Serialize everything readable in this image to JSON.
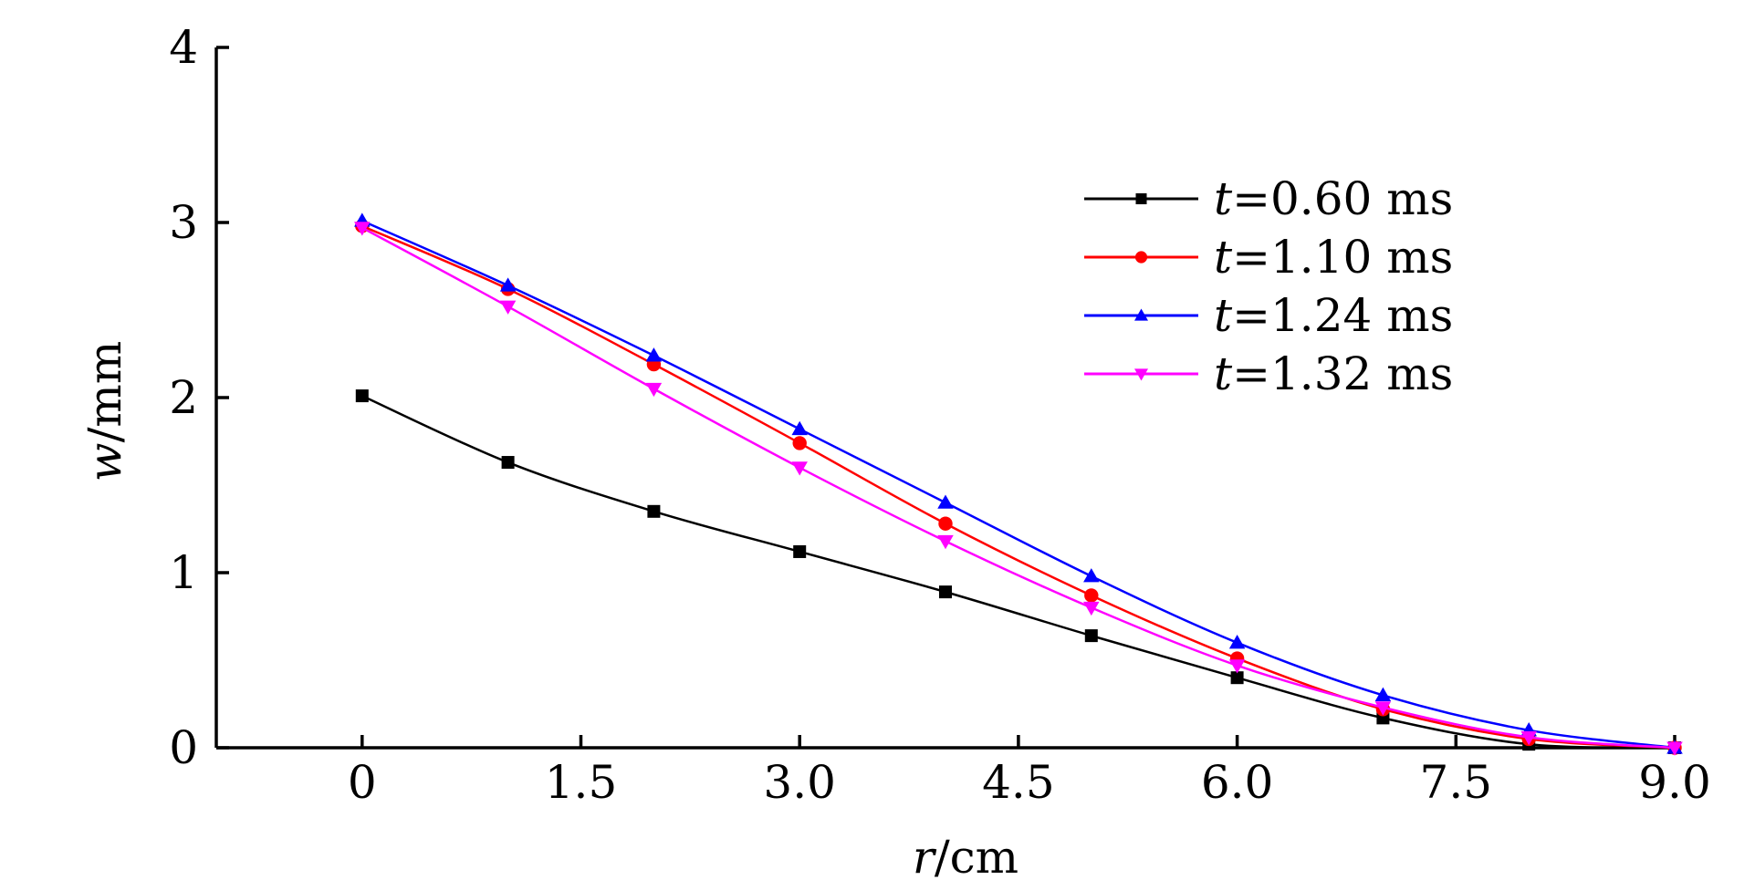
{
  "chart_data": {
    "type": "line",
    "title": "",
    "xlabel": {
      "symbol": "r",
      "unit": "/cm"
    },
    "ylabel": {
      "symbol": "w",
      "unit": "/mm"
    },
    "xlim": [
      -1.0,
      9.0
    ],
    "ylim": [
      0,
      4
    ],
    "x_ticks": [
      {
        "value": 0,
        "label": "0"
      },
      {
        "value": 1.5,
        "label": "1.5"
      },
      {
        "value": 3.0,
        "label": "3.0"
      },
      {
        "value": 4.5,
        "label": "4.5"
      },
      {
        "value": 6.0,
        "label": "6.0"
      },
      {
        "value": 7.5,
        "label": "7.5"
      },
      {
        "value": 9.0,
        "label": "9.0"
      }
    ],
    "y_ticks": [
      {
        "value": 0,
        "label": "0"
      },
      {
        "value": 1,
        "label": "1"
      },
      {
        "value": 2,
        "label": "2"
      },
      {
        "value": 3,
        "label": "3"
      },
      {
        "value": 4,
        "label": "4"
      }
    ],
    "grid": false,
    "legend_position": "top-right",
    "x": [
      0,
      1,
      2,
      3,
      4,
      5,
      6,
      7,
      8,
      9
    ],
    "series": [
      {
        "name_symbol": "t",
        "name_value": "=0.60 ms",
        "color": "#000000",
        "marker": "square",
        "values": [
          2.01,
          1.63,
          1.35,
          1.12,
          0.89,
          0.64,
          0.4,
          0.17,
          0.02,
          0.0
        ]
      },
      {
        "name_symbol": "t",
        "name_value": "=1.10 ms",
        "color": "#ff0000",
        "marker": "circle",
        "values": [
          2.98,
          2.62,
          2.19,
          1.74,
          1.28,
          0.87,
          0.51,
          0.22,
          0.05,
          0.0
        ]
      },
      {
        "name_symbol": "t",
        "name_value": "=1.24 ms",
        "color": "#0000ff",
        "marker": "triangle-up",
        "values": [
          3.01,
          2.64,
          2.24,
          1.82,
          1.4,
          0.98,
          0.6,
          0.3,
          0.1,
          0.0
        ]
      },
      {
        "name_symbol": "t",
        "name_value": "=1.32 ms",
        "color": "#ff00ff",
        "marker": "triangle-down",
        "values": [
          2.97,
          2.52,
          2.05,
          1.6,
          1.18,
          0.8,
          0.47,
          0.23,
          0.06,
          0.0
        ]
      }
    ]
  }
}
